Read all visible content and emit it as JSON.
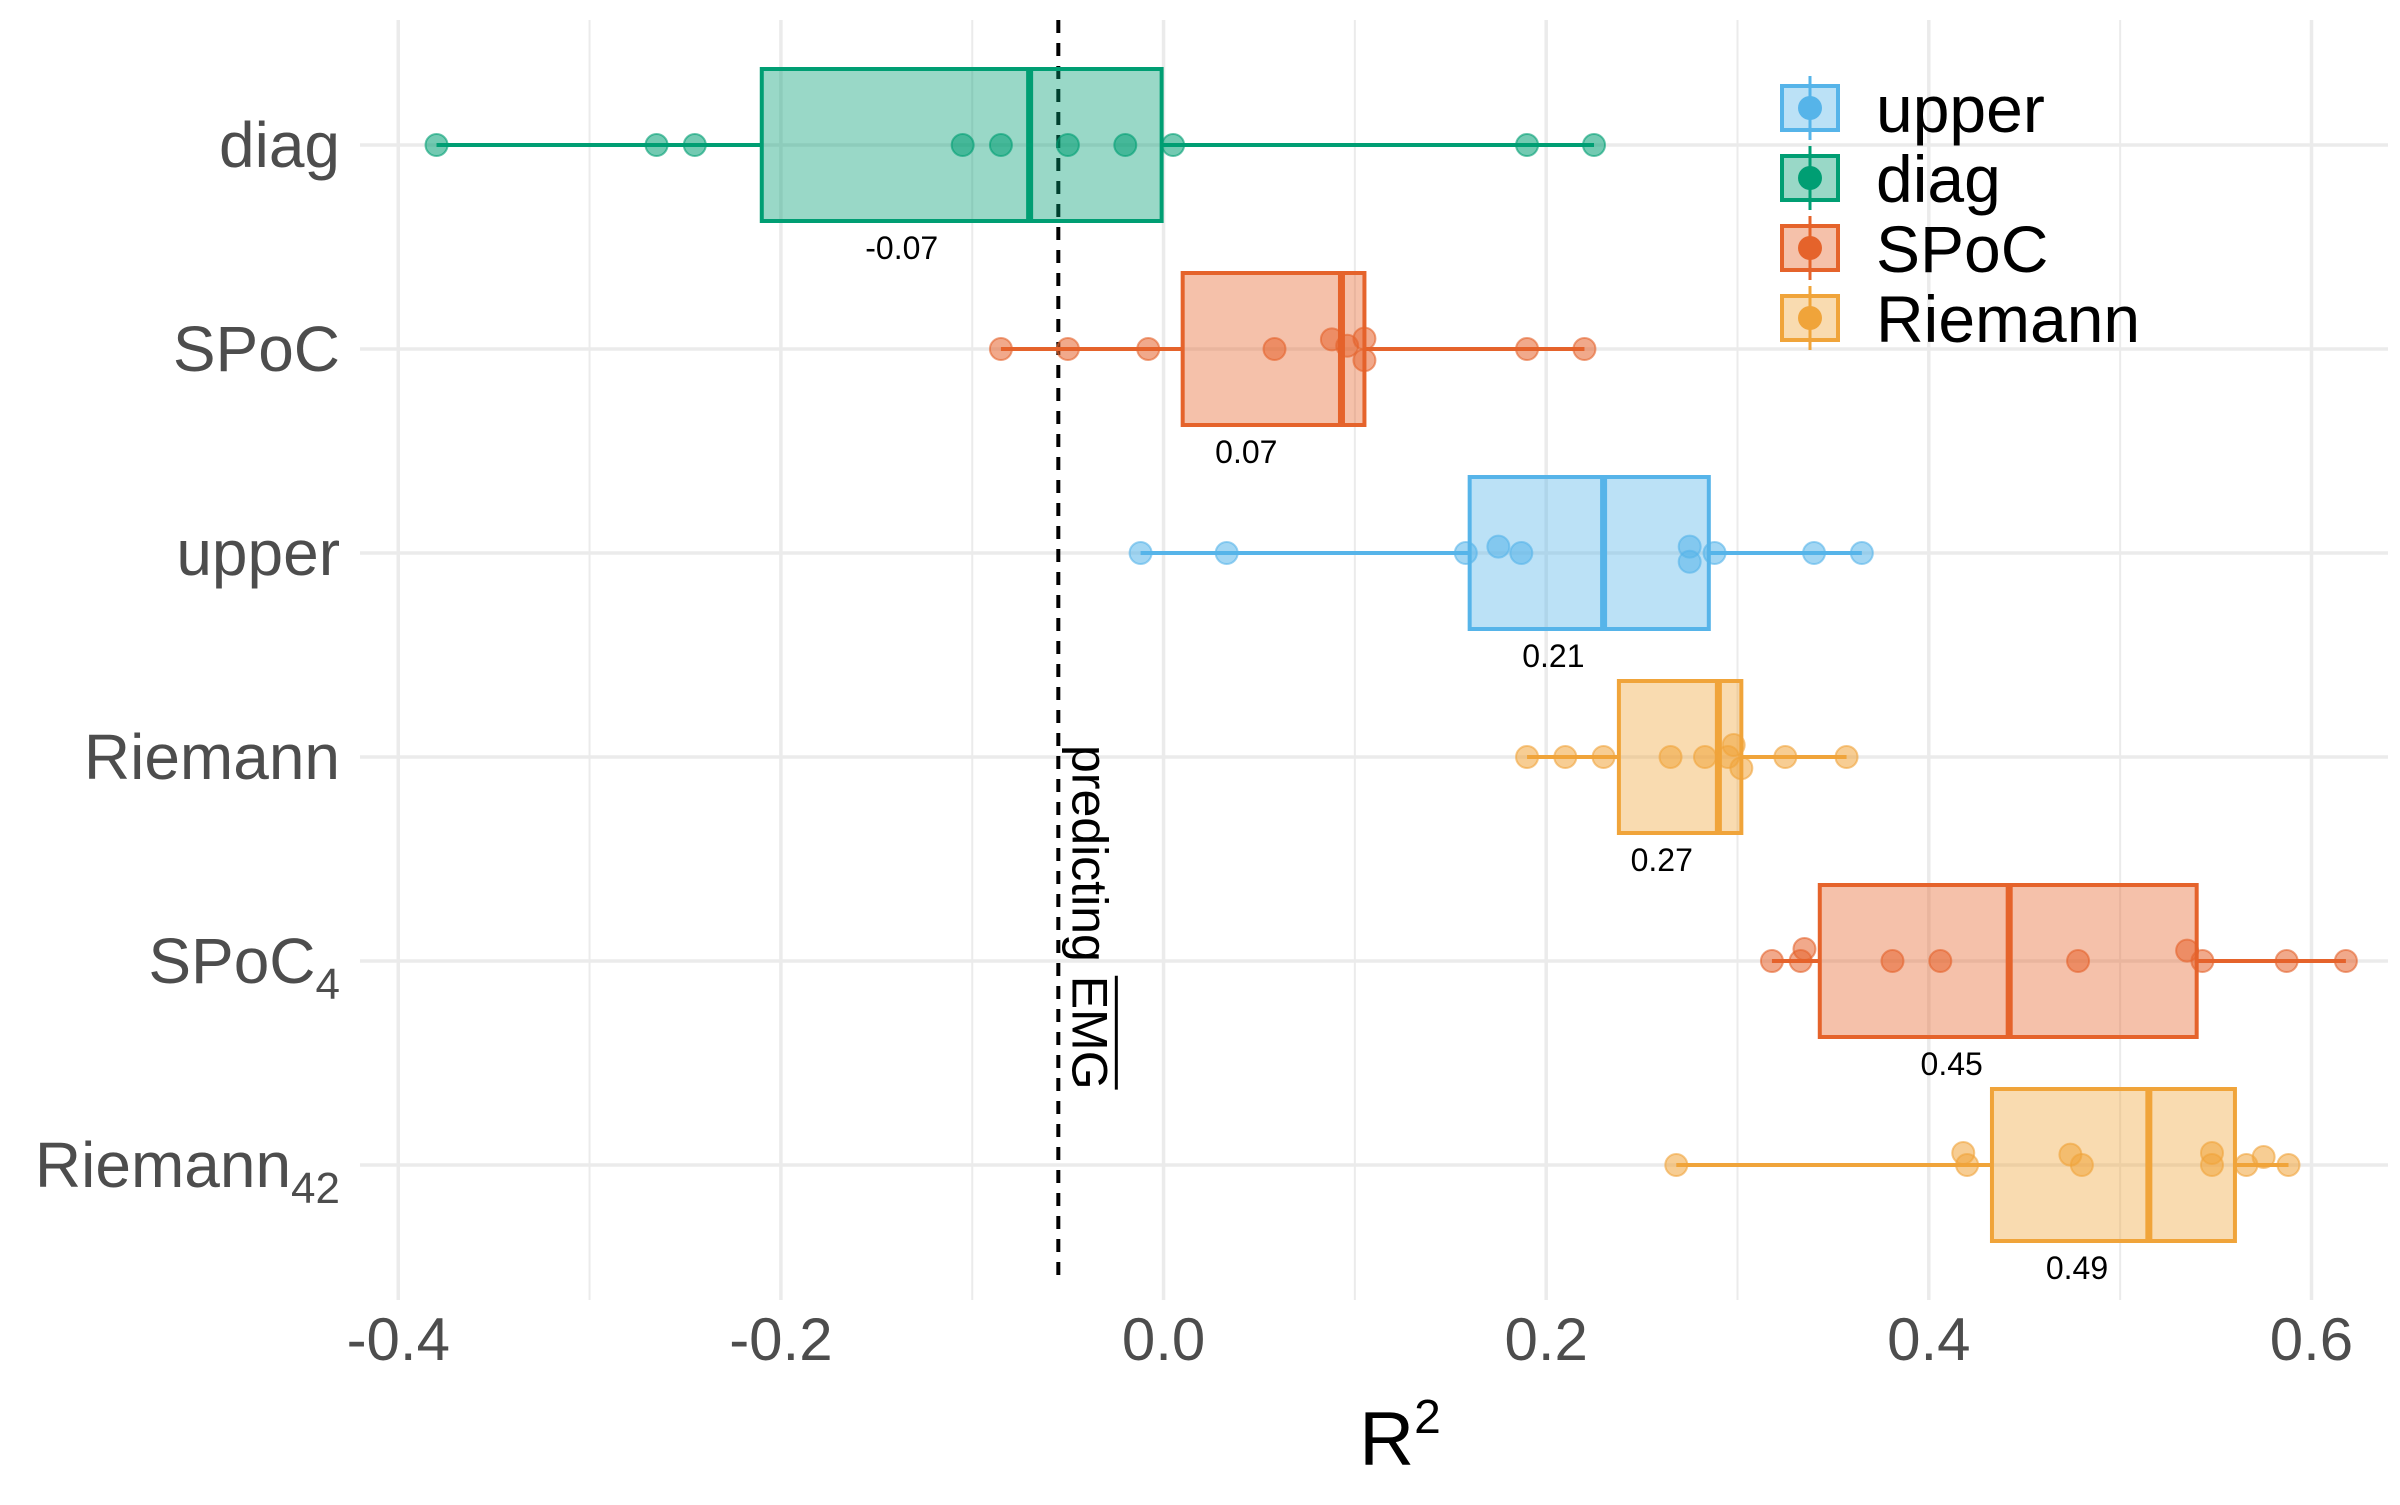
{
  "chart_data": {
    "type": "box",
    "title": "",
    "xlabel": "R",
    "xlabel_sup": "2",
    "ylabel": "",
    "xlim": [
      -0.42,
      0.64
    ],
    "x_ticks": [
      -0.4,
      -0.2,
      0.0,
      0.2,
      0.4,
      0.6
    ],
    "x_tick_labels": [
      "-0.4",
      "-0.2",
      "0.0",
      "0.2",
      "0.4",
      "0.6"
    ],
    "grid": true,
    "legend_position": "top-right",
    "colors": {
      "upper": "#56B4E9",
      "diag": "#009E73",
      "SPoC": "#E5632B",
      "Riemann": "#F0A43A"
    },
    "legend": [
      {
        "key": "upper",
        "label": "upper"
      },
      {
        "key": "diag",
        "label": "diag"
      },
      {
        "key": "SPoC",
        "label": "SPoC"
      },
      {
        "key": "Riemann",
        "label": "Riemann"
      }
    ],
    "reference_line": {
      "x": -0.055,
      "label_main": "predicting ",
      "label_over": "EMG"
    },
    "rows": [
      {
        "label": "diag",
        "label_sub": "",
        "color_key": "diag",
        "whisker_low": -0.38,
        "q1": -0.21,
        "median": -0.07,
        "q3": -0.001,
        "whisker_high": 0.225,
        "median_label": "-0.07",
        "points": [
          {
            "x": -0.38,
            "j": 0
          },
          {
            "x": -0.265,
            "j": 0
          },
          {
            "x": -0.245,
            "j": 0
          },
          {
            "x": -0.105,
            "j": 0
          },
          {
            "x": -0.085,
            "j": 0
          },
          {
            "x": -0.05,
            "j": 0
          },
          {
            "x": -0.02,
            "j": 0
          },
          {
            "x": 0.005,
            "j": 0
          },
          {
            "x": 0.19,
            "j": 0
          },
          {
            "x": 0.225,
            "j": 0
          }
        ]
      },
      {
        "label": "SPoC",
        "label_sub": "",
        "color_key": "SPoC",
        "whisker_low": -0.085,
        "q1": 0.01,
        "median": 0.093,
        "q3": 0.105,
        "whisker_high": 0.22,
        "median_label": "0.07",
        "points": [
          {
            "x": -0.085,
            "j": 0
          },
          {
            "x": -0.05,
            "j": 0
          },
          {
            "x": -0.008,
            "j": 0
          },
          {
            "x": 0.058,
            "j": 0
          },
          {
            "x": 0.088,
            "j": 0.6
          },
          {
            "x": 0.096,
            "j": 0.2
          },
          {
            "x": 0.105,
            "j": 0.65
          },
          {
            "x": 0.105,
            "j": -0.7
          },
          {
            "x": 0.19,
            "j": 0
          },
          {
            "x": 0.22,
            "j": 0
          }
        ]
      },
      {
        "label": "upper",
        "label_sub": "",
        "color_key": "upper",
        "whisker_low": -0.012,
        "q1": 0.16,
        "median": 0.23,
        "q3": 0.285,
        "whisker_high": 0.365,
        "median_label": "0.21",
        "points": [
          {
            "x": -0.012,
            "j": 0
          },
          {
            "x": 0.033,
            "j": 0
          },
          {
            "x": 0.158,
            "j": 0
          },
          {
            "x": 0.175,
            "j": 0.4
          },
          {
            "x": 0.187,
            "j": 0
          },
          {
            "x": 0.275,
            "j": 0.4
          },
          {
            "x": 0.275,
            "j": -0.55
          },
          {
            "x": 0.288,
            "j": 0
          },
          {
            "x": 0.34,
            "j": 0
          },
          {
            "x": 0.365,
            "j": 0
          }
        ]
      },
      {
        "label": "Riemann",
        "label_sub": "",
        "color_key": "Riemann",
        "whisker_low": 0.19,
        "q1": 0.238,
        "median": 0.29,
        "q3": 0.302,
        "whisker_high": 0.357,
        "median_label": "0.27",
        "points": [
          {
            "x": 0.19,
            "j": 0
          },
          {
            "x": 0.21,
            "j": 0
          },
          {
            "x": 0.23,
            "j": 0
          },
          {
            "x": 0.265,
            "j": 0
          },
          {
            "x": 0.283,
            "j": 0
          },
          {
            "x": 0.295,
            "j": 0
          },
          {
            "x": 0.298,
            "j": 0.75
          },
          {
            "x": 0.302,
            "j": -0.7
          },
          {
            "x": 0.325,
            "j": 0
          },
          {
            "x": 0.357,
            "j": 0
          }
        ]
      },
      {
        "label": "SPoC",
        "label_sub": "4",
        "color_key": "SPoC",
        "whisker_low": 0.318,
        "q1": 0.343,
        "median": 0.442,
        "q3": 0.54,
        "whisker_high": 0.618,
        "median_label": "0.45",
        "points": [
          {
            "x": 0.318,
            "j": 0
          },
          {
            "x": 0.333,
            "j": 0
          },
          {
            "x": 0.335,
            "j": 0.75
          },
          {
            "x": 0.381,
            "j": 0
          },
          {
            "x": 0.406,
            "j": 0
          },
          {
            "x": 0.478,
            "j": 0
          },
          {
            "x": 0.535,
            "j": 0.65
          },
          {
            "x": 0.543,
            "j": 0
          },
          {
            "x": 0.587,
            "j": 0
          },
          {
            "x": 0.618,
            "j": 0
          }
        ]
      },
      {
        "label": "Riemann",
        "label_sub": "42",
        "color_key": "Riemann",
        "whisker_low": 0.268,
        "q1": 0.433,
        "median": 0.515,
        "q3": 0.56,
        "whisker_high": 0.588,
        "median_label": "0.49",
        "points": [
          {
            "x": 0.268,
            "j": 0
          },
          {
            "x": 0.418,
            "j": 0.75
          },
          {
            "x": 0.42,
            "j": 0
          },
          {
            "x": 0.474,
            "j": 0.65
          },
          {
            "x": 0.48,
            "j": 0
          },
          {
            "x": 0.548,
            "j": 0.75
          },
          {
            "x": 0.548,
            "j": 0
          },
          {
            "x": 0.566,
            "j": 0
          },
          {
            "x": 0.575,
            "j": 0.5
          },
          {
            "x": 0.588,
            "j": 0
          }
        ]
      }
    ]
  }
}
